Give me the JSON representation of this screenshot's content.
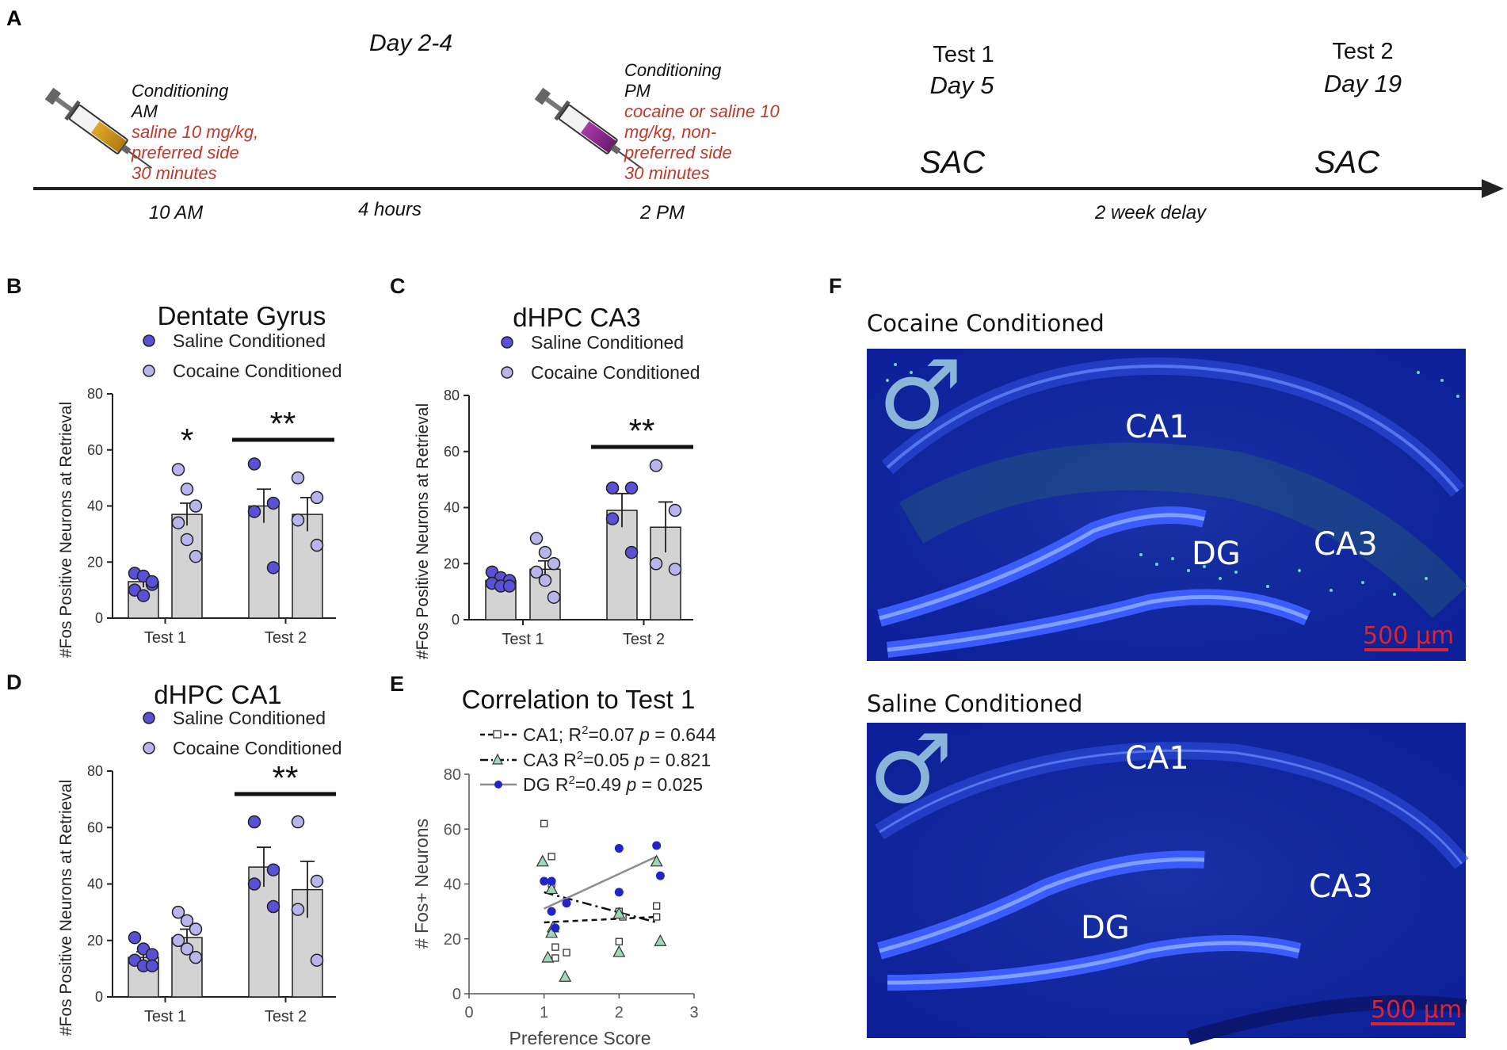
{
  "panel_letters": {
    "a": "A",
    "b": "B",
    "c": "C",
    "d": "D",
    "e": "E",
    "f": "F"
  },
  "timeline": {
    "day_label": "Day 2-4",
    "am": {
      "line1": "Conditioning",
      "line2": "AM",
      "red1": "saline 10 mg/kg,",
      "red2": "preferred side",
      "red3": "30 minutes"
    },
    "pm": {
      "line1": "Conditioning",
      "line2": "PM",
      "red1": "cocaine or saline 10",
      "red2": "mg/kg, non-",
      "red3": "preferred side",
      "red4": "30 minutes"
    },
    "test1": {
      "title": "Test 1",
      "day": "Day 5",
      "sac": "SAC"
    },
    "test2": {
      "title": "Test 2",
      "day": "Day 19",
      "sac": "SAC"
    },
    "time_10am": "10 AM",
    "time_4h": "4 hours",
    "time_2pm": "2 PM",
    "delay": "2 week delay",
    "colors": {
      "am_liquid": "#c8961e",
      "pm_liquid": "#8b2a8e",
      "red_text": "#c0392b"
    }
  },
  "chart_data": [
    {
      "id": "B",
      "type": "bar",
      "title": "Dentate Gyrus",
      "ylabel": "#Fos Positive Neurons at Retrieval",
      "ylim": [
        0,
        80
      ],
      "yticks": [
        "0",
        "20",
        "40",
        "60",
        "80"
      ],
      "categories": [
        "Test 1",
        "Test 2"
      ],
      "legend": [
        "Saline Conditioned",
        "Cocaine Conditioned"
      ],
      "series": [
        {
          "name": "Saline Conditioned",
          "values": [
            13,
            40
          ],
          "err": [
            2,
            6
          ],
          "points": [
            [
              16,
              15,
              12,
              10,
              8,
              13
            ],
            [
              55,
              41,
              38,
              18
            ]
          ]
        },
        {
          "name": "Cocaine Conditioned",
          "values": [
            37,
            37
          ],
          "err": [
            4,
            6
          ],
          "points": [
            [
              53,
              46,
              40,
              34,
              28,
              22
            ],
            [
              50,
              43,
              35,
              26
            ]
          ]
        }
      ],
      "annotations": [
        "*",
        "**"
      ]
    },
    {
      "id": "C",
      "type": "bar",
      "title": "dHPC CA3",
      "ylabel": "#Fos Positive Neurons at Retrieval",
      "ylim": [
        0,
        80
      ],
      "yticks": [
        "0",
        "20",
        "40",
        "60",
        "80"
      ],
      "categories": [
        "Test 1",
        "Test 2"
      ],
      "legend": [
        "Saline Conditioned",
        "Cocaine Conditioned"
      ],
      "series": [
        {
          "name": "Saline Conditioned",
          "values": [
            14,
            39
          ],
          "err": [
            1,
            6
          ],
          "points": [
            [
              17,
              15,
              14,
              13,
              12,
              12
            ],
            [
              47,
              47,
              36,
              24
            ]
          ]
        },
        {
          "name": "Cocaine Conditioned",
          "values": [
            18,
            33
          ],
          "err": [
            3,
            9
          ],
          "points": [
            [
              29,
              24,
              20,
              17,
              14,
              8
            ],
            [
              55,
              39,
              20,
              18
            ]
          ]
        }
      ],
      "annotations": [
        "**"
      ]
    },
    {
      "id": "D",
      "type": "bar",
      "title": "dHPC CA1",
      "ylabel": "#Fos Positive Neurons at Retrieval",
      "ylim": [
        0,
        80
      ],
      "yticks": [
        "0",
        "20",
        "40",
        "60",
        "80"
      ],
      "categories": [
        "Test 1",
        "Test 2"
      ],
      "legend": [
        "Saline Conditioned",
        "Cocaine Conditioned"
      ],
      "series": [
        {
          "name": "Saline Conditioned",
          "values": [
            14,
            46
          ],
          "err": [
            2,
            7
          ],
          "points": [
            [
              21,
              17,
              15,
              13,
              11,
              11
            ],
            [
              62,
              45,
              40,
              32
            ]
          ]
        },
        {
          "name": "Cocaine Conditioned",
          "values": [
            21,
            38
          ],
          "err": [
            3,
            10
          ],
          "points": [
            [
              30,
              27,
              24,
              20,
              17,
              14
            ],
            [
              62,
              41,
              31,
              13
            ]
          ]
        }
      ],
      "annotations": [
        "**"
      ]
    },
    {
      "id": "E",
      "type": "scatter",
      "title": "Correlation to Test 1",
      "xlabel": "Preference Score",
      "ylabel": "# Fos+ Neurons",
      "xlim": [
        0,
        3
      ],
      "ylim": [
        0,
        80
      ],
      "xticks": [
        "0",
        "1",
        "2",
        "3"
      ],
      "yticks": [
        "0",
        "20",
        "40",
        "60",
        "80"
      ],
      "legend": [
        {
          "label": "CA1; R",
          "sup": "2",
          "stat": "=0.07 ",
          "p": "p",
          "pval": " = 0.644"
        },
        {
          "label": "CA3 R",
          "sup": "2",
          "stat": "=0.05 ",
          "p": "p",
          "pval": " = 0.821"
        },
        {
          "label": "DG R",
          "sup": "2",
          "stat": "=0.49 ",
          "p": "p",
          "pval": " = 0.025"
        }
      ],
      "series": [
        {
          "name": "CA1",
          "marker": "square",
          "line": [
            [
              1,
              26
            ],
            [
              2.5,
              28
            ]
          ],
          "x": [
            1.0,
            1.1,
            1.1,
            1.15,
            1.3,
            2.0,
            2.0,
            2.05,
            2.5,
            2.5,
            1.15
          ],
          "y": [
            62,
            50,
            40,
            17,
            15,
            30,
            19,
            28,
            32,
            28,
            13
          ]
        },
        {
          "name": "CA3",
          "marker": "triangle",
          "line": [
            [
              1,
              37
            ],
            [
              2.5,
              26
            ]
          ],
          "x": [
            0.98,
            1.1,
            1.12,
            1.1,
            1.05,
            1.28,
            2.0,
            2.0,
            2.5,
            2.55
          ],
          "y": [
            48,
            38,
            24,
            22,
            13,
            6,
            29,
            15,
            48,
            19
          ]
        },
        {
          "name": "DG",
          "marker": "circle",
          "line": [
            [
              1,
              31
            ],
            [
              2.5,
              50
            ]
          ],
          "x": [
            1.0,
            1.1,
            1.1,
            1.15,
            1.3,
            2.0,
            2.0,
            2.5,
            2.55
          ],
          "y": [
            41,
            41,
            30,
            24,
            33,
            53,
            37,
            54,
            43
          ]
        }
      ]
    }
  ],
  "micrographs": {
    "cocaine": {
      "title": "Cocaine Conditioned",
      "ca1": "CA1",
      "ca3": "CA3",
      "dg": "DG",
      "scale": "500 μm",
      "male_symbol": "♂"
    },
    "saline": {
      "title": "Saline Conditioned",
      "ca1": "CA1",
      "ca3": "CA3",
      "dg": "DG",
      "scale": "500 μm",
      "male_symbol": "♂"
    }
  },
  "colors": {
    "bar_fill": "#d3d3d3",
    "saline_dot": "#5a50d8",
    "cocaine_dot": "#b8b5ee",
    "dg_line": "#8c8c8c",
    "ca3_fill": "#9fd8b8",
    "tissue": "#1b2fb4",
    "male_symbol": "#8ab4d8",
    "scale_red": "#e1212b"
  }
}
